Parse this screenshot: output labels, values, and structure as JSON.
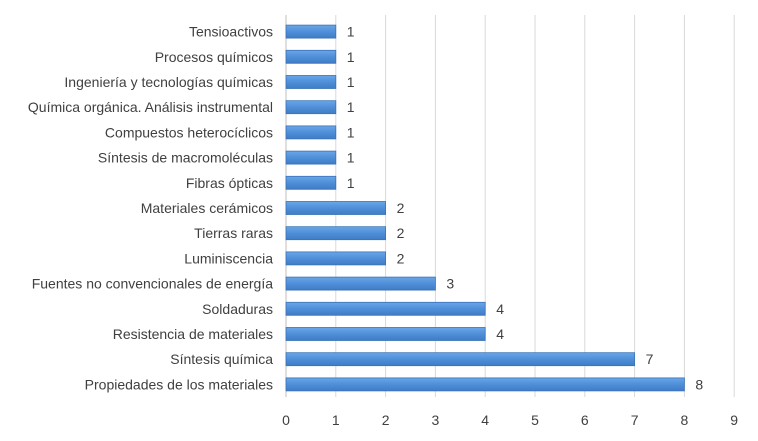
{
  "chart_data": {
    "type": "bar",
    "orientation": "horizontal",
    "title": "",
    "xlabel": "",
    "ylabel": "",
    "xlim": [
      0,
      9
    ],
    "xticks": [
      0,
      1,
      2,
      3,
      4,
      5,
      6,
      7,
      8,
      9
    ],
    "grid": true,
    "legend": "none",
    "bar_color": "#4f8fd8",
    "bar_edge_color": "#3a72b8",
    "categories": [
      "Tensioactivos",
      "Procesos químicos",
      "Ingeniería y tecnologías químicas",
      "Química orgánica. Análisis instrumental",
      "Compuestos heterocíclicos",
      "Síntesis de macromoléculas",
      "Fibras ópticas",
      "Materiales cerámicos",
      "Tierras raras",
      "Luminiscencia",
      "Fuentes no convencionales de energía",
      "Soldaduras",
      "Resistencia de materiales",
      "Síntesis química",
      "Propiedades de los materiales"
    ],
    "values": [
      1,
      1,
      1,
      1,
      1,
      1,
      1,
      2,
      2,
      2,
      3,
      4,
      4,
      7,
      8
    ]
  }
}
